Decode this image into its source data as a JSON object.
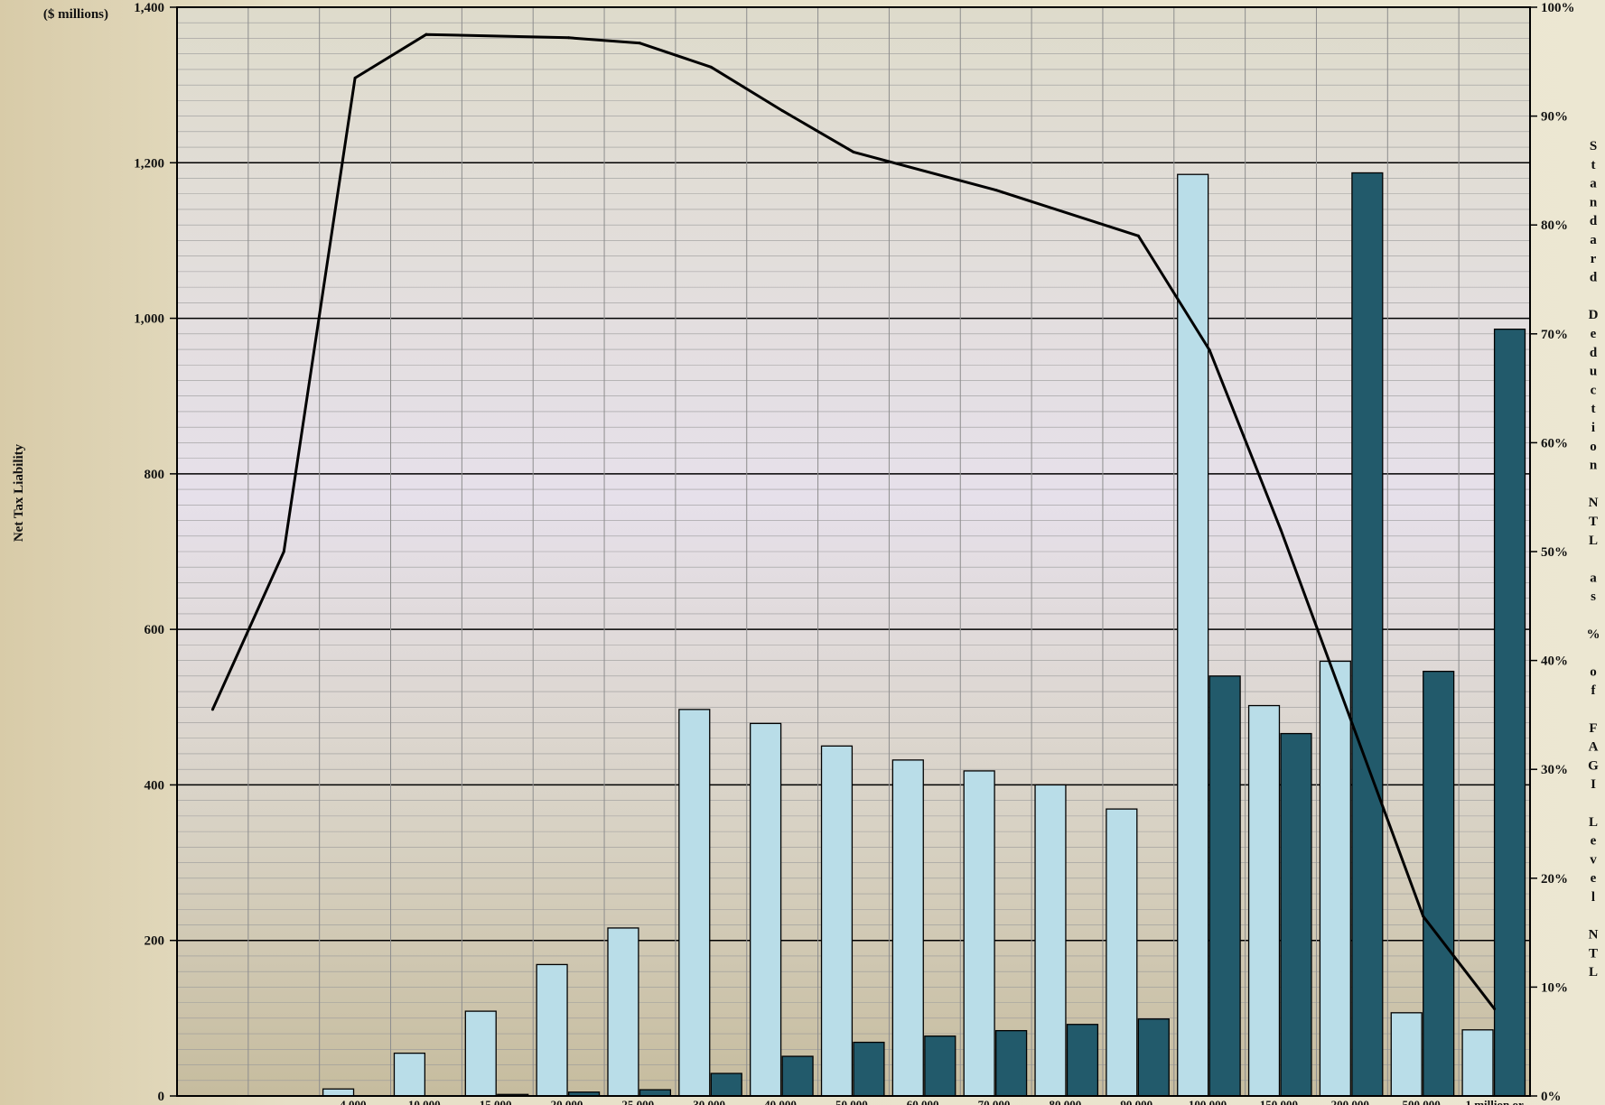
{
  "chart_data": {
    "type": "bar",
    "left_unit_label": "($ millions)",
    "ylabel": "Net Tax Liability",
    "y2label": "Standard Deduction NTL as % of FAGI Level NTL",
    "ylim": [
      0,
      1400
    ],
    "yticks": [
      "0",
      "200",
      "400",
      "600",
      "800",
      "1,000",
      "1,200",
      "1,400"
    ],
    "y2lim": [
      0,
      100
    ],
    "y2ticks": [
      "0%",
      "10%",
      "20%",
      "30%",
      "40%",
      "50%",
      "60%",
      "70%",
      "80%",
      "90%",
      "100%"
    ],
    "categories": [
      "",
      "",
      "4,000-",
      "10,000-",
      "15,000-",
      "20,000-",
      "25,000-",
      "30,000-",
      "40,000-",
      "50,000-",
      "60,000-",
      "70,000-",
      "80,000-",
      "90,000-",
      "100,000-",
      "150,000-",
      "200,000-",
      "500,000-",
      "1 million  or"
    ],
    "series": [
      {
        "type": "bar",
        "color": "#b9dde8",
        "values": [
          0,
          0,
          9,
          55,
          109,
          169,
          216,
          497,
          479,
          450,
          432,
          418,
          400,
          369,
          1185,
          502,
          559,
          107,
          85
        ]
      },
      {
        "type": "bar",
        "color": "#225a6b",
        "values": [
          0,
          0,
          0,
          0,
          2,
          5,
          8,
          29,
          51,
          69,
          77,
          84,
          92,
          99,
          540,
          466,
          1187,
          546,
          986
        ]
      },
      {
        "type": "line",
        "axis": "right",
        "color": "#000000",
        "values": [
          35.5,
          50,
          93.5,
          97.5,
          null,
          97.2,
          96.7,
          94.5,
          90.5,
          86.7,
          null,
          83.2,
          null,
          79,
          68.5,
          52,
          null,
          16.5,
          8
        ]
      }
    ],
    "grid": true
  }
}
